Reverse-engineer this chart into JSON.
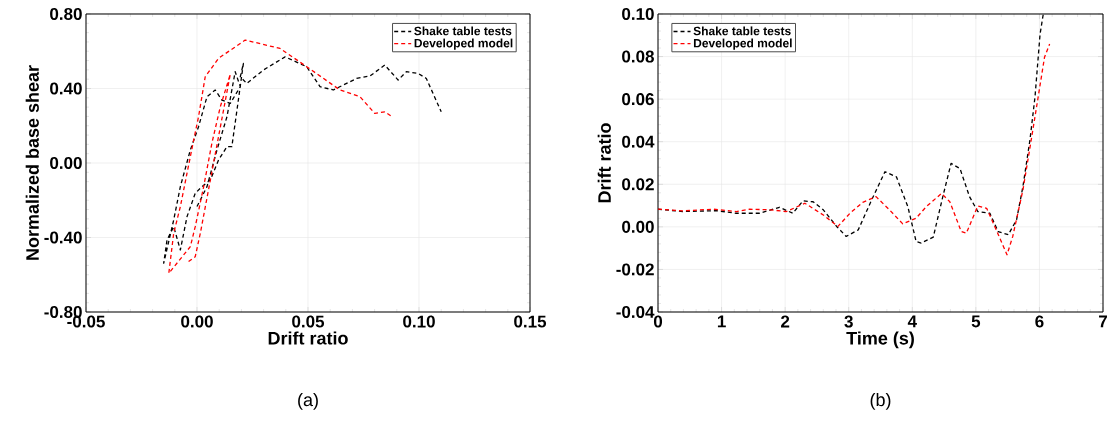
{
  "chart_data": [
    {
      "type": "line",
      "xlabel": "Drift ratio",
      "ylabel": "Normalized base shear",
      "annotations": [
        "(a)"
      ],
      "xlim": [
        -0.05,
        0.15
      ],
      "ylim": [
        -0.8,
        0.8
      ],
      "xticks": [
        {
          "value": -0.05,
          "label": "-0.05"
        },
        {
          "value": 0,
          "label": "0.00"
        },
        {
          "value": 0.05,
          "label": "0.05"
        },
        {
          "value": 0.1,
          "label": "0.10"
        },
        {
          "value": 0.15,
          "label": "0.15"
        }
      ],
      "yticks": [
        {
          "value": -0.8,
          "label": "-0.80"
        },
        {
          "value": -0.4,
          "label": "-0.40"
        },
        {
          "value": 0,
          "label": "0.00"
        },
        {
          "value": 0.4,
          "label": "0.40"
        },
        {
          "value": 0.8,
          "label": "0.80"
        }
      ],
      "grid": true,
      "legend": "top right",
      "line_style": "dashed",
      "marker": "none",
      "series": [
        {
          "name": "Shake table tests",
          "color": "#000000",
          "x": [
            0.0,
            0.0045,
            0.009,
            0.0135,
            0.0172,
            0.0195,
            0.015,
            0.0112,
            0.0082,
            0.0045,
            0.0007,
            -0.003,
            -0.0075,
            -0.0105,
            -0.015,
            -0.0135,
            -0.0105,
            -0.0075,
            -0.0045,
            -0.0008,
            0.0022,
            0.006,
            0.0097,
            0.0135,
            0.0157,
            0.018,
            0.0209,
            0.0195,
            0.0224,
            0.0299,
            0.0397,
            0.0494,
            0.0554,
            0.0614,
            0.0719,
            0.0779,
            0.0846,
            0.0906,
            0.0943,
            0.0996,
            0.1033,
            0.11
          ],
          "values": [
            -0.234,
            -0.127,
            0.07,
            0.249,
            0.49,
            0.41,
            0.32,
            0.338,
            0.392,
            0.356,
            0.195,
            0.07,
            -0.127,
            -0.306,
            -0.538,
            -0.413,
            -0.342,
            -0.467,
            -0.288,
            -0.163,
            -0.127,
            -0.091,
            0.016,
            0.088,
            0.088,
            0.284,
            0.535,
            0.463,
            0.427,
            0.499,
            0.57,
            0.517,
            0.41,
            0.392,
            0.454,
            0.467,
            0.526,
            0.445,
            0.49,
            0.481,
            0.454,
            0.275
          ]
        },
        {
          "name": "Developed model",
          "color": "#ff0000",
          "x": [
            -0.0038,
            -0.0008,
            0.0015,
            0.015,
            0.0105,
            0.0067,
            0.003,
            -0.0008,
            -0.003,
            -0.0127,
            -0.0105,
            -0.0075,
            -0.0045,
            -0.0015,
            0.0007,
            0.0037,
            0.0097,
            0.0217,
            0.0374,
            0.0494,
            0.0644,
            0.0734,
            0.0801,
            0.0846,
            0.0883
          ],
          "values": [
            -0.529,
            -0.503,
            -0.377,
            0.477,
            0.302,
            0.106,
            -0.127,
            -0.342,
            -0.449,
            -0.592,
            -0.377,
            -0.234,
            -0.055,
            0.123,
            0.249,
            0.463,
            0.562,
            0.66,
            0.615,
            0.517,
            0.392,
            0.356,
            0.266,
            0.275,
            0.245
          ]
        }
      ]
    },
    {
      "type": "line",
      "xlabel": "Time (s)",
      "ylabel": "Drift ratio",
      "annotations": [
        "(b)"
      ],
      "xlim": [
        0,
        7
      ],
      "ylim": [
        -0.04,
        0.1
      ],
      "xticks": [
        0,
        1,
        2,
        3,
        4,
        5,
        6,
        7
      ],
      "yticks": [
        {
          "value": -0.04,
          "label": "-0.04"
        },
        {
          "value": -0.02,
          "label": "-0.02"
        },
        {
          "value": 0,
          "label": "0.00"
        },
        {
          "value": 0.02,
          "label": "0.02"
        },
        {
          "value": 0.04,
          "label": "0.04"
        },
        {
          "value": 0.06,
          "label": "0.06"
        },
        {
          "value": 0.08,
          "label": "0.08"
        },
        {
          "value": 0.1,
          "label": "0.10"
        }
      ],
      "grid": true,
      "legend": "top left",
      "line_style": "dashed",
      "marker": "none",
      "series": [
        {
          "name": "Shake table tests",
          "color": "#000000",
          "x": [
            0,
            0.39,
            0.92,
            1.23,
            1.6,
            1.91,
            2.12,
            2.28,
            2.44,
            2.6,
            2.81,
            2.96,
            3.15,
            3.36,
            3.57,
            3.75,
            3.93,
            4.06,
            4.14,
            4.33,
            4.48,
            4.61,
            4.75,
            4.9,
            5.03,
            5.22,
            5.35,
            5.51,
            5.64,
            5.74,
            5.85,
            5.93,
            6.01,
            6.06
          ],
          "values": [
            0.0083,
            0.0072,
            0.0076,
            0.0064,
            0.0064,
            0.0092,
            0.0064,
            0.0122,
            0.0118,
            0.008,
            0.0002,
            -0.0045,
            -0.0014,
            0.0126,
            0.0259,
            0.0235,
            0.0095,
            -0.0069,
            -0.0076,
            -0.0048,
            0.0142,
            0.0298,
            0.0274,
            0.0142,
            0.0072,
            0.0064,
            -0.0022,
            -0.0037,
            0.0033,
            0.0189,
            0.0407,
            0.061,
            0.0906,
            0.0999
          ]
        },
        {
          "name": "Developed model",
          "color": "#ff0000",
          "x": [
            0,
            0.39,
            0.87,
            1.23,
            1.44,
            1.76,
            2.02,
            2.31,
            2.6,
            2.83,
            3.02,
            3.22,
            3.43,
            3.64,
            3.85,
            4.06,
            4.22,
            4.46,
            4.59,
            4.77,
            4.85,
            5.03,
            5.17,
            5.32,
            5.49,
            5.58,
            5.74,
            5.87,
            5.98,
            6.08,
            6.16
          ],
          "values": [
            0.0083,
            0.0075,
            0.0083,
            0.0072,
            0.0083,
            0.008,
            0.0072,
            0.0111,
            0.0056,
            0.0002,
            0.0064,
            0.0115,
            0.0142,
            0.008,
            0.0014,
            0.0041,
            0.0095,
            0.0157,
            0.0118,
            -0.0022,
            -0.003,
            0.0098,
            0.0087,
            -0.0014,
            -0.0131,
            -0.0045,
            0.0173,
            0.0407,
            0.061,
            0.0797,
            0.0859
          ]
        }
      ]
    }
  ]
}
